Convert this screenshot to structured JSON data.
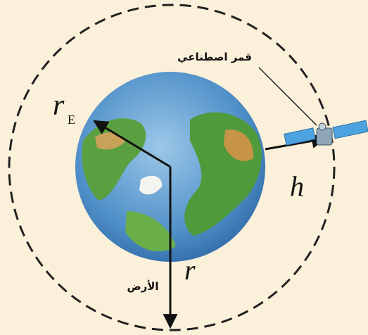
{
  "labels": {
    "satellite": "قمر اصطناعي",
    "earth_radius": {
      "symbol": "r",
      "subscript": "E"
    },
    "altitude": "h",
    "orbit_radius": "r",
    "earth": "الأرض"
  }
}
